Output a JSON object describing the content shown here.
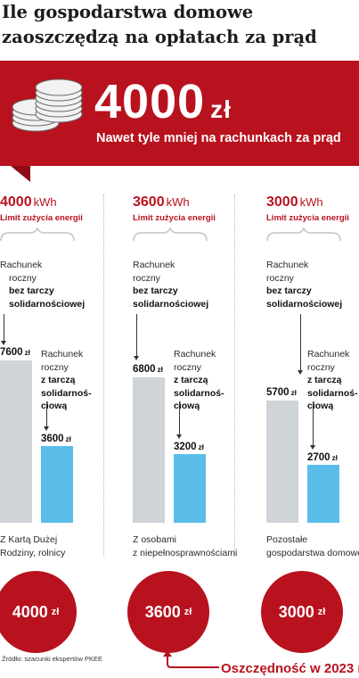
{
  "title": "Ile gospodarstwa domowe zaoszczędzą na  opłatach za prąd",
  "headline": {
    "amount": "4000",
    "unit": "zł",
    "subtitle": "Nawet tyle mniej na rachunkach za prąd"
  },
  "labels": {
    "limit": "Limit zużycia energii",
    "without_line1": "Rachunek",
    "without_line2": "roczny",
    "without_line3": "bez tarczy",
    "without_line4": "solidarnościowej",
    "with_line1": "Rachunek",
    "with_line2": "roczny",
    "with_line3": "z tarczą",
    "with_line4": "solidarnoś-",
    "with_line5": "ciową",
    "kwh_unit": "kWh",
    "currency": "zł"
  },
  "source": "Źródło: szacunki ekspertów PKEE",
  "footnote": "Oszczędność w 2023 r.",
  "colors": {
    "accent_red": "#b8121e",
    "bar_without": "#cfd4d8",
    "bar_with": "#5bbdea"
  },
  "chart_data": {
    "type": "bar",
    "categories": [
      "Z Kartą Dużej Rodziny, rolnicy",
      "Z osobami z niepełnosprawnościami",
      "Pozostałe gospodarstwa domowe"
    ],
    "limits_kwh": [
      "4000",
      "3600",
      "3000"
    ],
    "series": [
      {
        "name": "Rachunek roczny bez tarczy solidarnościowej",
        "values": [
          7600,
          6800,
          5700
        ]
      },
      {
        "name": "Rachunek roczny z tarczą solidarnościową",
        "values": [
          3600,
          3200,
          2700
        ]
      }
    ],
    "savings": [
      "4000",
      "3600",
      "3000"
    ],
    "ylim": [
      0,
      7600
    ]
  },
  "columns": [
    {
      "limit": "4000",
      "without": "7600",
      "with": "3600",
      "group_line1": "Z Kartą Dużej",
      "group_line2": "Rodziny, rolnicy",
      "saving": "4000"
    },
    {
      "limit": "3600",
      "without": "6800",
      "with": "3200",
      "group_line1": "Z osobami",
      "group_line2": "z niepełnosprawnościami",
      "saving": "3600"
    },
    {
      "limit": "3000",
      "without": "5700",
      "with": "2700",
      "group_line1": "Pozostałe",
      "group_line2": "gospodarstwa domowe",
      "saving": "3000"
    }
  ]
}
